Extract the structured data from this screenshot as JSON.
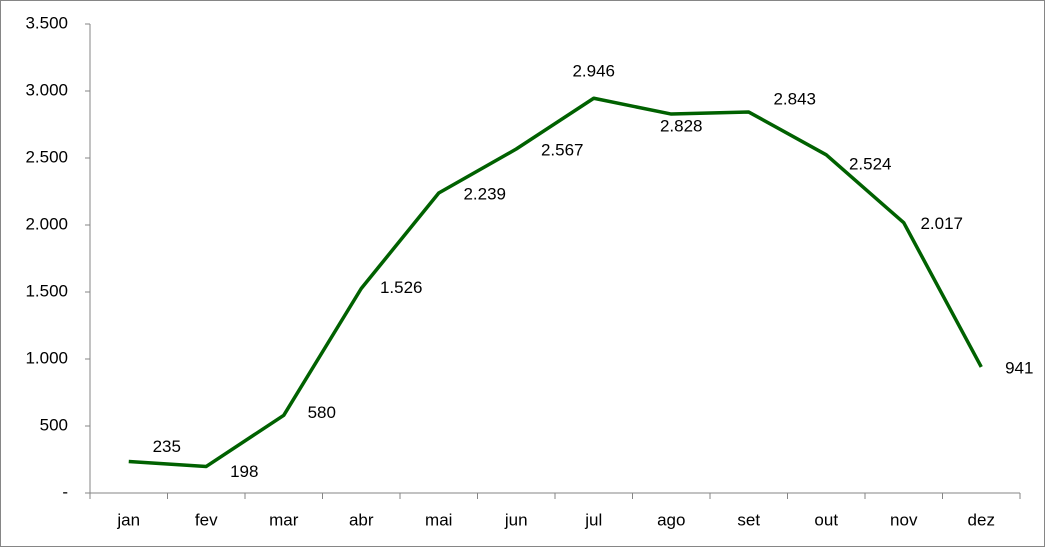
{
  "chart_data": {
    "type": "line",
    "categories": [
      "jan",
      "fev",
      "mar",
      "abr",
      "mai",
      "jun",
      "jul",
      "ago",
      "set",
      "out",
      "nov",
      "dez"
    ],
    "series": [
      {
        "color": "#006100",
        "values": [
          235,
          198,
          580,
          1526,
          2239,
          2567,
          2946,
          2828,
          2843,
          2524,
          2017,
          941
        ],
        "value_labels": [
          "235",
          "198",
          "580",
          "1.526",
          "2.239",
          "2.567",
          "2.946",
          "2.828",
          "2.843",
          "2.524",
          "2.017",
          "941"
        ]
      }
    ],
    "ylim": [
      0,
      3500
    ],
    "yticks": [
      {
        "value": 0,
        "label": "-"
      },
      500,
      {
        "value": 1000,
        "label": "1.000"
      },
      {
        "value": 1500,
        "label": "1.500"
      },
      {
        "value": 2000,
        "label": "2.000"
      },
      {
        "value": 2500,
        "label": "2.500"
      },
      {
        "value": 3000,
        "label": "3.000"
      },
      {
        "value": 3500,
        "label": "3.500"
      }
    ],
    "grid": false
  }
}
